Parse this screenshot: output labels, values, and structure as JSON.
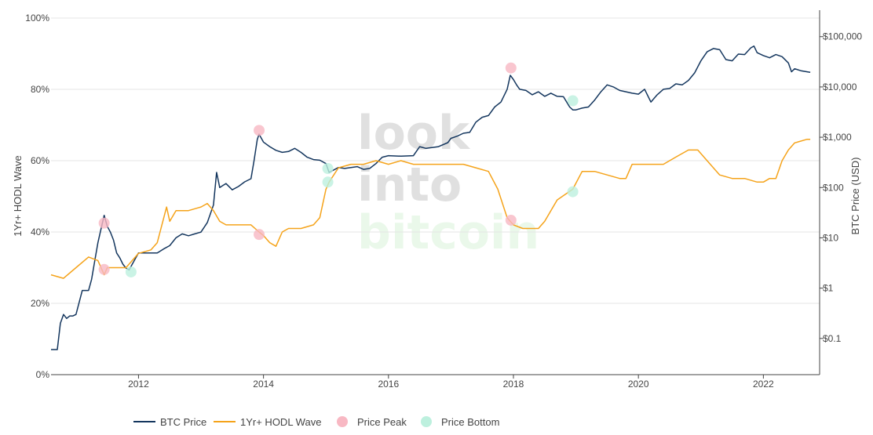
{
  "chart_data": {
    "type": "line",
    "watermark": [
      "look",
      "into",
      "bitcoin"
    ],
    "y_left": {
      "title": "1Yr+ HODL Wave",
      "ticks": [
        "0%",
        "20%",
        "40%",
        "60%",
        "80%",
        "100%"
      ],
      "range": [
        0,
        100
      ]
    },
    "y_right": {
      "title": "BTC Price (USD)",
      "scale": "log",
      "ticks": [
        "$0.1",
        "$1",
        "$10",
        "$100",
        "$1,000",
        "$10,000",
        "$100,000"
      ],
      "range_log10": [
        -1.72,
        5.37
      ]
    },
    "x": {
      "ticks": [
        "2012",
        "2014",
        "2016",
        "2018",
        "2020",
        "2022"
      ],
      "range": [
        2010.6,
        2022.9
      ]
    },
    "legend": [
      "BTC Price",
      "1Yr+ HODL Wave",
      "Price Peak",
      "Price Bottom"
    ],
    "colors": {
      "btc": "#14365e",
      "hodl": "#f5a31a",
      "peak": "#f8b8c3",
      "bottom": "#bdf0de",
      "grid": "#e6e6e6",
      "axis": "#444444",
      "wm_gray": "#e0e0e0",
      "wm_green": "#eaf8ea"
    },
    "series": [
      {
        "name": "BTC Price",
        "axis": "right",
        "x": [
          2010.6,
          2010.7,
          2010.75,
          2010.8,
          2010.85,
          2010.9,
          2010.95,
          2011.0,
          2011.1,
          2011.2,
          2011.25,
          2011.3,
          2011.35,
          2011.4,
          2011.45,
          2011.5,
          2011.55,
          2011.6,
          2011.65,
          2011.7,
          2011.75,
          2011.8,
          2011.85,
          2011.9,
          2012.0,
          2012.1,
          2012.2,
          2012.3,
          2012.4,
          2012.5,
          2012.6,
          2012.7,
          2012.8,
          2012.9,
          2013.0,
          2013.1,
          2013.15,
          2013.2,
          2013.25,
          2013.3,
          2013.35,
          2013.4,
          2013.5,
          2013.6,
          2013.7,
          2013.8,
          2013.85,
          2013.9,
          2013.93,
          2014.0,
          2014.1,
          2014.2,
          2014.3,
          2014.4,
          2014.5,
          2014.6,
          2014.7,
          2014.8,
          2014.9,
          2015.0,
          2015.05,
          2015.2,
          2015.3,
          2015.5,
          2015.6,
          2015.7,
          2015.8,
          2015.9,
          2016.0,
          2016.2,
          2016.4,
          2016.5,
          2016.6,
          2016.8,
          2016.95,
          2017.0,
          2017.1,
          2017.2,
          2017.3,
          2017.4,
          2017.5,
          2017.6,
          2017.7,
          2017.8,
          2017.9,
          2017.95,
          2018.0,
          2018.05,
          2018.1,
          2018.2,
          2018.3,
          2018.4,
          2018.5,
          2018.6,
          2018.7,
          2018.8,
          2018.9,
          2018.95,
          2019.0,
          2019.1,
          2019.2,
          2019.3,
          2019.4,
          2019.5,
          2019.6,
          2019.7,
          2019.8,
          2019.9,
          2020.0,
          2020.1,
          2020.2,
          2020.3,
          2020.4,
          2020.5,
          2020.6,
          2020.7,
          2020.8,
          2020.9,
          2021.0,
          2021.1,
          2021.2,
          2021.3,
          2021.4,
          2021.5,
          2021.6,
          2021.7,
          2021.8,
          2021.85,
          2021.9,
          2022.0,
          2022.1,
          2022.2,
          2022.3,
          2022.4,
          2022.45,
          2022.5,
          2022.6,
          2022.7,
          2022.75
        ],
        "values": [
          0.06,
          0.06,
          0.2,
          0.3,
          0.25,
          0.28,
          0.28,
          0.3,
          0.9,
          0.9,
          1.5,
          3.5,
          8,
          15,
          28,
          17,
          13,
          9,
          5,
          4,
          3,
          2.5,
          2.3,
          3,
          5,
          5,
          5,
          5,
          6,
          7,
          10,
          12,
          11,
          12,
          13,
          20,
          30,
          45,
          200,
          100,
          110,
          120,
          90,
          105,
          130,
          150,
          350,
          900,
          1150,
          800,
          650,
          550,
          500,
          520,
          600,
          500,
          400,
          360,
          350,
          300,
          200,
          250,
          240,
          260,
          230,
          240,
          300,
          400,
          430,
          420,
          430,
          650,
          600,
          650,
          780,
          950,
          1050,
          1200,
          1250,
          2000,
          2500,
          2700,
          4000,
          5000,
          9000,
          17000,
          14000,
          11000,
          9000,
          8500,
          7000,
          8000,
          6500,
          7500,
          6500,
          6400,
          4000,
          3500,
          3500,
          3800,
          4000,
          5500,
          8000,
          11000,
          10000,
          8500,
          8000,
          7500,
          7200,
          9000,
          5000,
          7000,
          9000,
          9300,
          11500,
          11000,
          13500,
          19000,
          33000,
          50000,
          58000,
          55000,
          35000,
          33000,
          45000,
          44000,
          60000,
          65000,
          48000,
          42000,
          38000,
          44000,
          40000,
          30000,
          20000,
          23000,
          21000,
          20000,
          19500
        ]
      },
      {
        "name": "1Yr+ HODL Wave",
        "axis": "left",
        "x": [
          2010.6,
          2010.8,
          2011.0,
          2011.2,
          2011.35,
          2011.45,
          2011.5,
          2011.6,
          2011.8,
          2012.0,
          2012.2,
          2012.3,
          2012.45,
          2012.5,
          2012.6,
          2012.8,
          2013.0,
          2013.1,
          2013.2,
          2013.3,
          2013.4,
          2013.6,
          2013.8,
          2013.93,
          2014.0,
          2014.1,
          2014.2,
          2014.3,
          2014.4,
          2014.5,
          2014.6,
          2014.8,
          2014.9,
          2015.0,
          2015.05,
          2015.2,
          2015.4,
          2015.6,
          2015.8,
          2016.0,
          2016.2,
          2016.4,
          2016.6,
          2016.8,
          2017.0,
          2017.1,
          2017.2,
          2017.4,
          2017.6,
          2017.75,
          2017.9,
          2017.95,
          2018.0,
          2018.15,
          2018.3,
          2018.4,
          2018.5,
          2018.7,
          2018.95,
          2019.1,
          2019.3,
          2019.5,
          2019.7,
          2019.8,
          2019.9,
          2020.0,
          2020.2,
          2020.4,
          2020.6,
          2020.8,
          2020.95,
          2021.1,
          2021.3,
          2021.5,
          2021.7,
          2021.9,
          2022.0,
          2022.1,
          2022.2,
          2022.3,
          2022.4,
          2022.5,
          2022.7,
          2022.75
        ],
        "values": [
          28,
          27,
          30,
          33,
          32,
          28,
          30,
          30,
          30,
          34,
          35,
          37,
          47,
          43,
          46,
          46,
          47,
          48,
          46,
          43,
          42,
          42,
          42,
          40,
          39,
          37,
          36,
          40,
          41,
          41,
          41,
          42,
          44,
          52,
          54,
          58,
          59,
          59,
          60,
          59,
          60,
          59,
          59,
          59,
          59,
          59,
          59,
          58,
          57,
          52,
          44,
          43,
          42,
          41,
          41,
          41,
          43,
          49,
          52,
          57,
          57,
          56,
          55,
          55,
          59,
          59,
          59,
          59,
          61,
          63,
          63,
          60,
          56,
          55,
          55,
          54,
          54,
          55,
          55,
          60,
          63,
          65,
          66,
          66
        ]
      }
    ],
    "price_peaks": [
      {
        "x": 2011.45,
        "y": 42.5
      },
      {
        "x": 2011.45,
        "y": 29.5
      },
      {
        "x": 2013.93,
        "y": 68.5
      },
      {
        "x": 2013.93,
        "y": 39.3
      },
      {
        "x": 2017.96,
        "y": 86.0
      },
      {
        "x": 2017.96,
        "y": 43.3
      }
    ],
    "price_bottoms": [
      {
        "x": 2011.88,
        "y": 28.8
      },
      {
        "x": 2015.03,
        "y": 57.8
      },
      {
        "x": 2015.03,
        "y": 54.0
      },
      {
        "x": 2018.95,
        "y": 76.8
      },
      {
        "x": 2018.95,
        "y": 51.3
      }
    ]
  }
}
